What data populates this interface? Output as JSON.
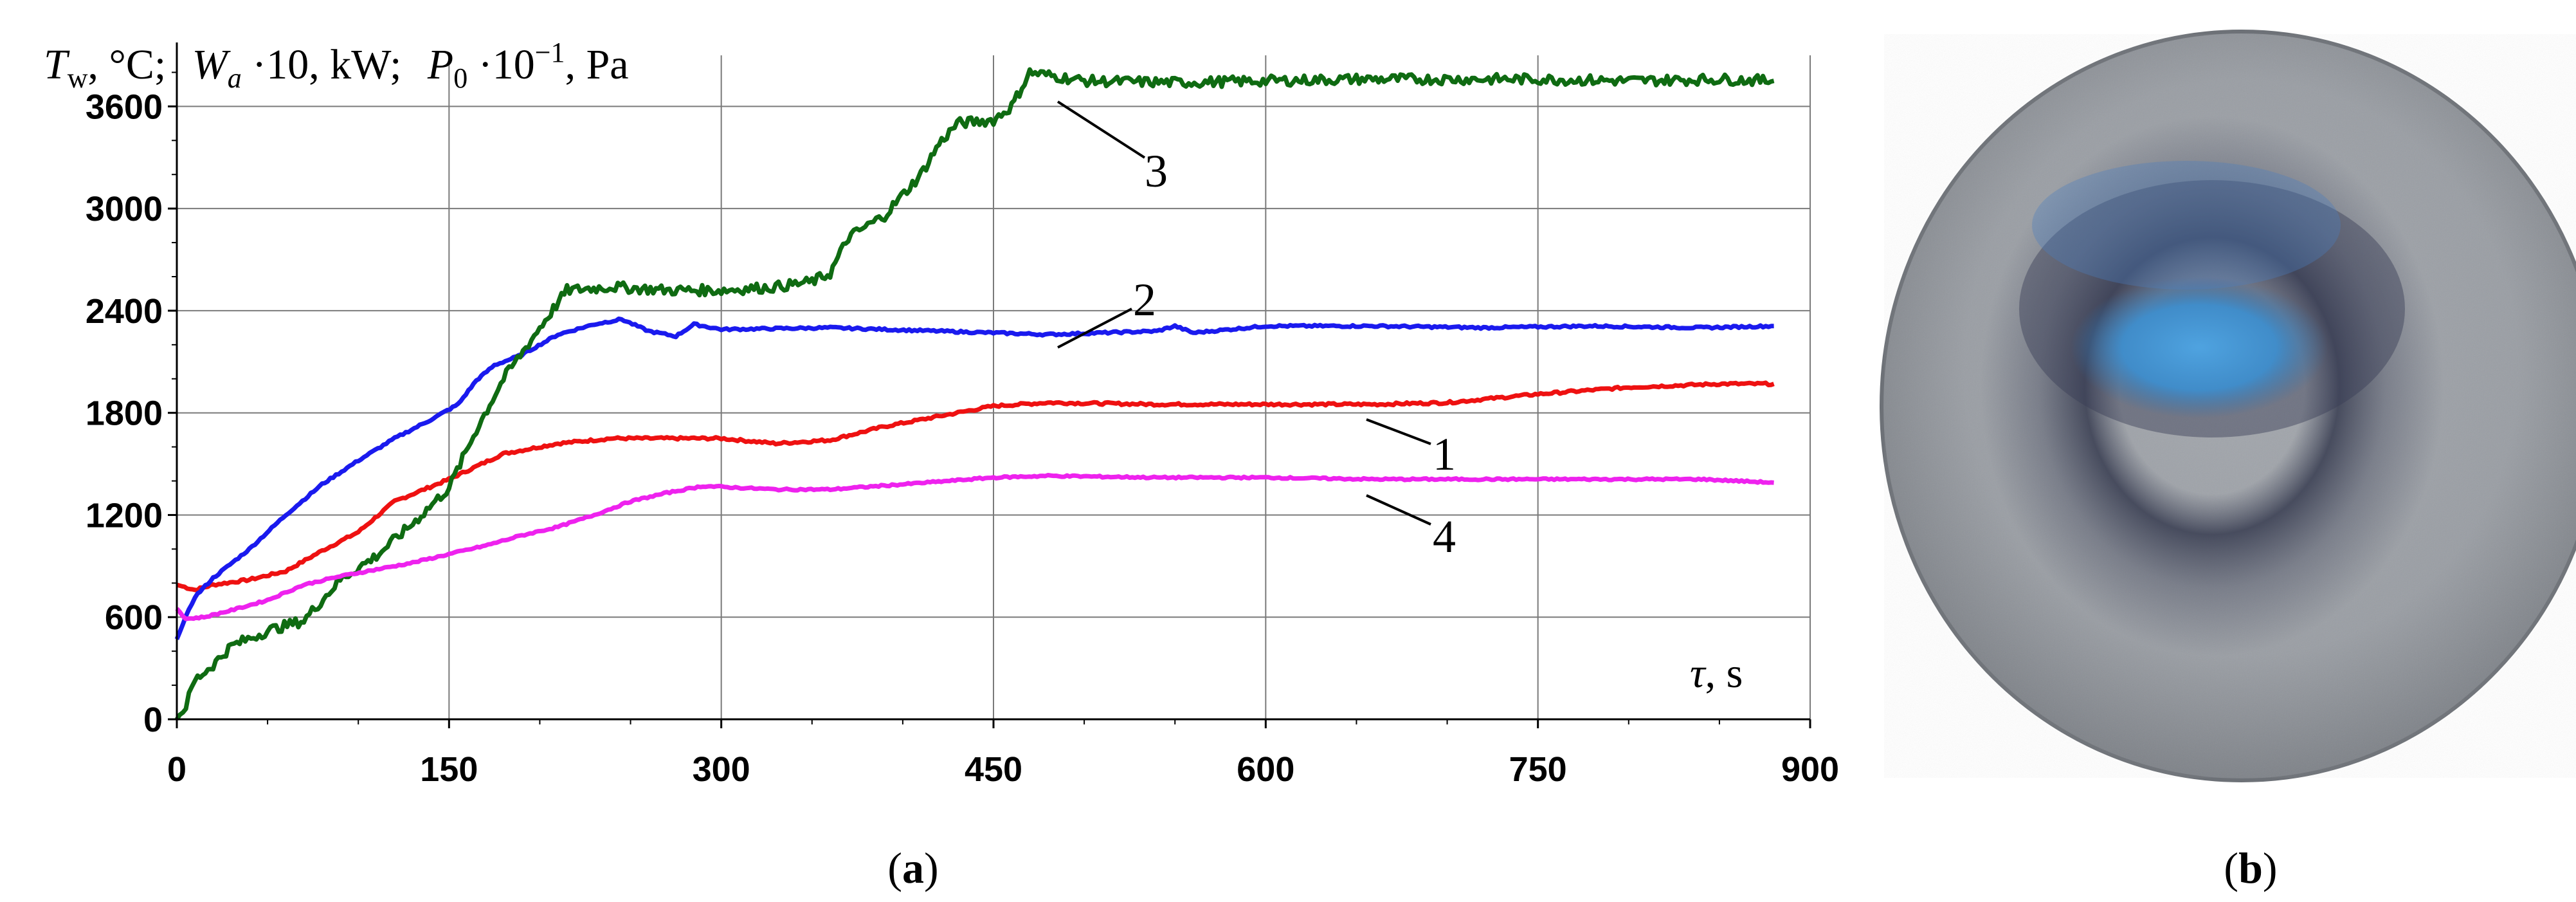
{
  "chart_data": {
    "type": "line",
    "y_axis_title": {
      "part1": {
        "sym": "T",
        "sub": "w",
        "text": ", °C;"
      },
      "part2": {
        "sym": "W",
        "sub": "a",
        "text": " ·10, kW;"
      },
      "part3": {
        "sym": "P",
        "sub": "0",
        "text": " ·10",
        "sup": "−1",
        "tail": ", Pa"
      }
    },
    "x_axis_title": {
      "sym": "τ",
      "text": ", s"
    },
    "xlim": [
      0,
      900
    ],
    "ylim": [
      0,
      3900
    ],
    "xticks": [
      0,
      150,
      300,
      450,
      600,
      750,
      900
    ],
    "yticks": [
      0,
      600,
      1200,
      1800,
      2400,
      3000,
      3600
    ],
    "grid": true,
    "series": [
      {
        "name": "1",
        "color": "#ee1111",
        "points": [
          [
            0,
            790
          ],
          [
            10,
            760
          ],
          [
            20,
            790
          ],
          [
            40,
            820
          ],
          [
            60,
            870
          ],
          [
            80,
            990
          ],
          [
            100,
            1100
          ],
          [
            120,
            1280
          ],
          [
            150,
            1410
          ],
          [
            180,
            1560
          ],
          [
            210,
            1620
          ],
          [
            240,
            1650
          ],
          [
            270,
            1650
          ],
          [
            300,
            1650
          ],
          [
            330,
            1620
          ],
          [
            360,
            1640
          ],
          [
            390,
            1720
          ],
          [
            420,
            1780
          ],
          [
            450,
            1840
          ],
          [
            480,
            1860
          ],
          [
            540,
            1850
          ],
          [
            600,
            1850
          ],
          [
            660,
            1850
          ],
          [
            700,
            1860
          ],
          [
            750,
            1910
          ],
          [
            800,
            1950
          ],
          [
            850,
            1970
          ],
          [
            880,
            1970
          ]
        ]
      },
      {
        "name": "2",
        "color": "#1a1aee",
        "points": [
          [
            0,
            470
          ],
          [
            5,
            600
          ],
          [
            10,
            720
          ],
          [
            20,
            830
          ],
          [
            40,
            1000
          ],
          [
            60,
            1200
          ],
          [
            80,
            1380
          ],
          [
            100,
            1520
          ],
          [
            120,
            1650
          ],
          [
            140,
            1760
          ],
          [
            155,
            1850
          ],
          [
            165,
            1990
          ],
          [
            175,
            2080
          ],
          [
            190,
            2140
          ],
          [
            210,
            2260
          ],
          [
            230,
            2320
          ],
          [
            245,
            2350
          ],
          [
            260,
            2280
          ],
          [
            275,
            2250
          ],
          [
            285,
            2320
          ],
          [
            300,
            2290
          ],
          [
            360,
            2300
          ],
          [
            420,
            2280
          ],
          [
            480,
            2260
          ],
          [
            540,
            2280
          ],
          [
            550,
            2310
          ],
          [
            560,
            2270
          ],
          [
            600,
            2310
          ],
          [
            660,
            2310
          ],
          [
            720,
            2300
          ],
          [
            780,
            2310
          ],
          [
            840,
            2300
          ],
          [
            880,
            2310
          ]
        ]
      },
      {
        "name": "3",
        "color": "#0f6b12",
        "points": [
          [
            0,
            0
          ],
          [
            5,
            80
          ],
          [
            10,
            230
          ],
          [
            20,
            320
          ],
          [
            30,
            430
          ],
          [
            50,
            520
          ],
          [
            70,
            580
          ],
          [
            90,
            820
          ],
          [
            110,
            960
          ],
          [
            130,
            1150
          ],
          [
            150,
            1360
          ],
          [
            165,
            1700
          ],
          [
            180,
            2000
          ],
          [
            200,
            2300
          ],
          [
            215,
            2520
          ],
          [
            240,
            2540
          ],
          [
            270,
            2520
          ],
          [
            300,
            2520
          ],
          [
            330,
            2540
          ],
          [
            350,
            2570
          ],
          [
            360,
            2620
          ],
          [
            370,
            2830
          ],
          [
            390,
            2960
          ],
          [
            410,
            3200
          ],
          [
            420,
            3380
          ],
          [
            430,
            3500
          ],
          [
            450,
            3520
          ],
          [
            460,
            3600
          ],
          [
            470,
            3800
          ],
          [
            500,
            3750
          ],
          [
            550,
            3740
          ],
          [
            600,
            3750
          ],
          [
            650,
            3760
          ],
          [
            700,
            3760
          ],
          [
            750,
            3760
          ],
          [
            800,
            3750
          ],
          [
            850,
            3760
          ],
          [
            880,
            3750
          ]
        ]
      },
      {
        "name": "4",
        "color": "#ee22ee",
        "points": [
          [
            0,
            650
          ],
          [
            5,
            590
          ],
          [
            15,
            600
          ],
          [
            30,
            640
          ],
          [
            50,
            700
          ],
          [
            70,
            790
          ],
          [
            90,
            840
          ],
          [
            110,
            880
          ],
          [
            130,
            920
          ],
          [
            150,
            970
          ],
          [
            170,
            1020
          ],
          [
            190,
            1080
          ],
          [
            210,
            1130
          ],
          [
            230,
            1200
          ],
          [
            250,
            1280
          ],
          [
            270,
            1330
          ],
          [
            290,
            1370
          ],
          [
            330,
            1350
          ],
          [
            360,
            1350
          ],
          [
            400,
            1380
          ],
          [
            450,
            1420
          ],
          [
            480,
            1430
          ],
          [
            540,
            1420
          ],
          [
            600,
            1420
          ],
          [
            660,
            1410
          ],
          [
            720,
            1410
          ],
          [
            780,
            1410
          ],
          [
            840,
            1410
          ],
          [
            880,
            1390
          ]
        ]
      }
    ]
  },
  "captions": {
    "a": "a",
    "b": "b"
  }
}
